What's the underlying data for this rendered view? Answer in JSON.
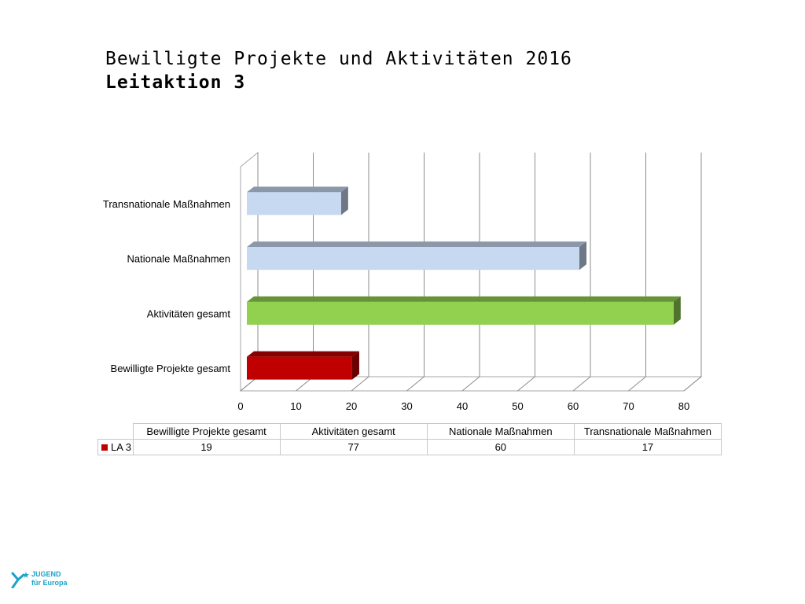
{
  "title": {
    "line1": "Bewilligte Projekte und Aktivitäten 2016",
    "line2": "Leitaktion 3"
  },
  "chart_data": {
    "type": "bar",
    "orientation": "horizontal",
    "style": "3d",
    "categories": [
      "Bewilligte Projekte gesamt",
      "Aktivitäten gesamt",
      "Nationale Maßnahmen",
      "Transnationale Maßnahmen"
    ],
    "series": [
      {
        "name": "LA 3",
        "values": [
          19,
          77,
          60,
          17
        ]
      }
    ],
    "bar_colors": [
      "#c00000",
      "#92d050",
      "#c6d9f1",
      "#c6d9f1"
    ],
    "legend_color": "#c00000",
    "xlim": [
      0,
      80
    ],
    "xticks": [
      0,
      10,
      20,
      30,
      40,
      50,
      60,
      70,
      80
    ],
    "grid": "vertical",
    "data_table": true
  },
  "logo": {
    "line1": "JUGEND",
    "line2": "für Europa",
    "color": "#1aa3c8"
  }
}
